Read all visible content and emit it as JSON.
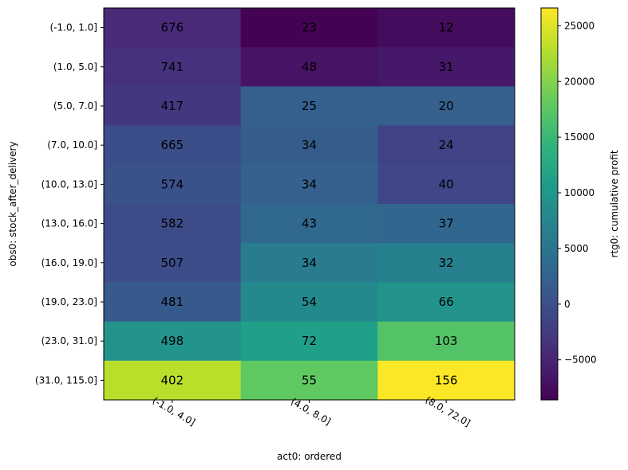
{
  "chart_data": {
    "type": "heatmap",
    "title": "",
    "xlabel": "act0: ordered",
    "ylabel": "obs0: stock_after_delivery",
    "x_categories": [
      "(-1.0, 4.0]",
      "(4.0, 8.0]",
      "(8.0, 72.0]"
    ],
    "y_categories": [
      "(-1.0, 1.0]",
      "(1.0, 5.0]",
      "(5.0, 7.0]",
      "(7.0, 10.0]",
      "(10.0, 13.0]",
      "(13.0, 16.0]",
      "(16.0, 19.0]",
      "(19.0, 23.0]",
      "(23.0, 31.0]",
      "(31.0, 115.0]"
    ],
    "cell_labels": [
      [
        676,
        23,
        12
      ],
      [
        741,
        48,
        31
      ],
      [
        417,
        25,
        20
      ],
      [
        665,
        34,
        24
      ],
      [
        574,
        34,
        40
      ],
      [
        582,
        43,
        37
      ],
      [
        507,
        34,
        32
      ],
      [
        481,
        54,
        66
      ],
      [
        498,
        72,
        103
      ],
      [
        402,
        55,
        156
      ]
    ],
    "color_values": [
      [
        -4500,
        -8500,
        -7600
      ],
      [
        -3600,
        -6800,
        -6300
      ],
      [
        -2800,
        2000,
        2000
      ],
      [
        -200,
        1800,
        -1500
      ],
      [
        200,
        2200,
        -1000
      ],
      [
        -400,
        3200,
        3000
      ],
      [
        -300,
        6200,
        6800
      ],
      [
        1400,
        8000,
        9500
      ],
      [
        9500,
        11200,
        17000
      ],
      [
        23000,
        17800,
        26500
      ]
    ],
    "colorbar": {
      "label": "rtg0: cumulative profit",
      "min": -8600,
      "max": 26600,
      "ticks": [
        -5000,
        0,
        5000,
        10000,
        15000,
        20000,
        25000
      ],
      "colormap": "viridis"
    }
  }
}
